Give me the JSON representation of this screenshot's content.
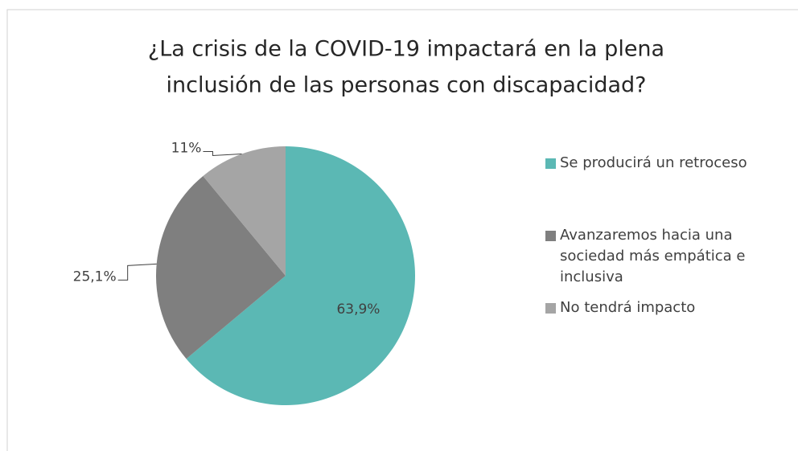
{
  "chart_data": {
    "type": "pie",
    "title": [
      "¿La crisis de la COVID-19 impactará en la plena",
      "inclusión de las personas con discapacidad?"
    ],
    "categories": [
      "Se producirá un retroceso",
      "Avanzaremos hacia una sociedad más empática e inclusiva",
      "No tendrá impacto"
    ],
    "values": [
      63.9,
      25.1,
      11
    ],
    "value_labels": [
      "63,9%",
      "25,1%",
      "11%"
    ],
    "colors": [
      "#5bb8b4",
      "#7f7f7f",
      "#a5a5a5"
    ],
    "legend": "right"
  }
}
